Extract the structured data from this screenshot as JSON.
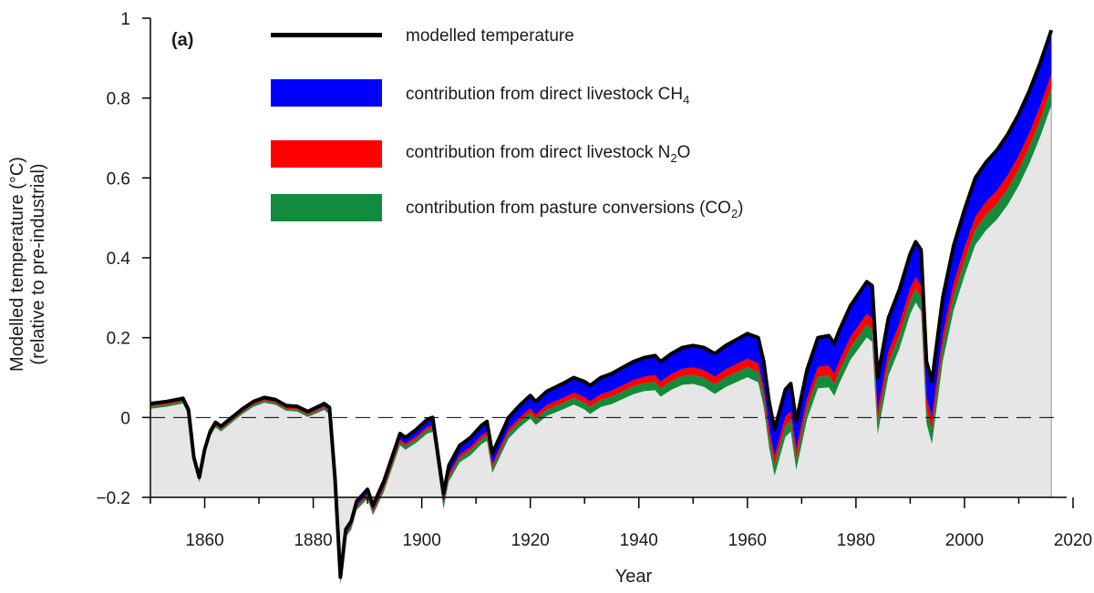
{
  "chart_data": {
    "type": "area",
    "panel_label": "(a)",
    "xlabel": "Year",
    "ylabel_line1": "Modelled temperature (°C)",
    "ylabel_line2": "(relative to pre-industrial)",
    "xlim": [
      1850,
      2020
    ],
    "ylim": [
      -0.2,
      1.0
    ],
    "xticks": [
      1860,
      1880,
      1900,
      1920,
      1940,
      1960,
      1980,
      2000,
      2020
    ],
    "yticks": [
      -0.2,
      0,
      0.2,
      0.4,
      0.6,
      0.8,
      1
    ],
    "ytick_labels": [
      "−0.2",
      "0",
      "0.2",
      "0.4",
      "0.6",
      "0.8",
      "1"
    ],
    "reference_line": {
      "y": 0,
      "style": "dashed"
    },
    "years": [
      1850,
      1853,
      1856,
      1857,
      1858,
      1859,
      1860,
      1861,
      1862,
      1863,
      1865,
      1867,
      1869,
      1871,
      1873,
      1875,
      1877,
      1879,
      1881,
      1882,
      1883,
      1884,
      1885,
      1886,
      1887,
      1888,
      1890,
      1891,
      1893,
      1895,
      1896,
      1897,
      1899,
      1901,
      1902,
      1904,
      1905,
      1907,
      1909,
      1911,
      1912,
      1913,
      1916,
      1918,
      1920,
      1921,
      1923,
      1926,
      1928,
      1930,
      1931,
      1933,
      1935,
      1937,
      1939,
      1941,
      1943,
      1944,
      1946,
      1948,
      1950,
      1952,
      1954,
      1956,
      1958,
      1960,
      1962,
      1963,
      1964,
      1965,
      1967,
      1968,
      1969,
      1971,
      1973,
      1975,
      1976,
      1977,
      1979,
      1981,
      1982,
      1983,
      1984,
      1986,
      1988,
      1990,
      1991,
      1992,
      1993,
      1994,
      1996,
      1998,
      2000,
      2002,
      2004,
      2006,
      2008,
      2010,
      2012,
      2014,
      2016
    ],
    "series": [
      {
        "name": "modelled temperature",
        "color": "#000000",
        "values": [
          0.035,
          0.04,
          0.048,
          0.02,
          -0.1,
          -0.15,
          -0.08,
          -0.035,
          -0.012,
          -0.022,
          0.0,
          0.022,
          0.04,
          0.05,
          0.045,
          0.03,
          0.028,
          0.015,
          0.028,
          0.035,
          0.025,
          -0.15,
          -0.4,
          -0.28,
          -0.26,
          -0.21,
          -0.18,
          -0.22,
          -0.16,
          -0.08,
          -0.04,
          -0.05,
          -0.03,
          -0.005,
          0.0,
          -0.19,
          -0.12,
          -0.07,
          -0.05,
          -0.02,
          -0.01,
          -0.09,
          0.0,
          0.03,
          0.055,
          0.04,
          0.065,
          0.085,
          0.1,
          0.09,
          0.08,
          0.1,
          0.11,
          0.125,
          0.14,
          0.15,
          0.155,
          0.14,
          0.16,
          0.175,
          0.18,
          0.175,
          0.16,
          0.18,
          0.195,
          0.21,
          0.2,
          0.14,
          0.04,
          -0.03,
          0.07,
          0.085,
          -0.01,
          0.12,
          0.2,
          0.205,
          0.185,
          0.22,
          0.28,
          0.32,
          0.34,
          0.33,
          0.1,
          0.25,
          0.32,
          0.41,
          0.44,
          0.42,
          0.14,
          0.09,
          0.3,
          0.43,
          0.52,
          0.6,
          0.64,
          0.67,
          0.71,
          0.76,
          0.82,
          0.89,
          0.97
        ]
      },
      {
        "name": "contribution from direct livestock CH4",
        "color": "#0000ff"
      },
      {
        "name": "contribution from direct livestock N2O",
        "color": "#ff0000"
      },
      {
        "name": "contribution from pasture conversions (CO2)",
        "color": "#128c3c"
      }
    ],
    "residual_fill_color": "#e6e6e6"
  },
  "legend": {
    "position": "top-center",
    "temperature": {
      "text": "modelled temperature"
    },
    "ch4": {
      "prefix": "contribution from direct livestock CH",
      "sub": "4",
      "suffix": ""
    },
    "n2o": {
      "prefix": "contribution from direct livestock N",
      "sub": "2",
      "suffix": "O"
    },
    "co2": {
      "prefix": "contribution from pasture conversions (CO",
      "sub": "2",
      "suffix": ")"
    }
  }
}
